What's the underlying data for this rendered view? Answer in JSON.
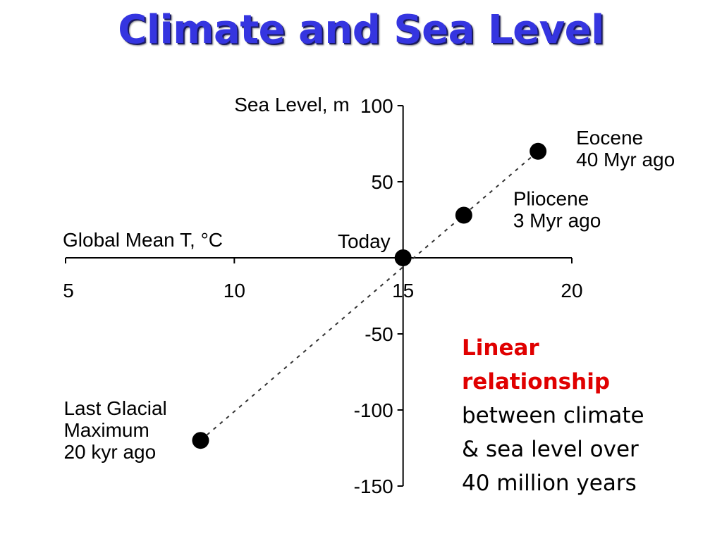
{
  "title": "Climate and Sea Level",
  "chart_data": {
    "type": "scatter",
    "xlabel": "Global Mean T, °C",
    "ylabel": "Sea Level, m",
    "xlim": [
      5,
      20
    ],
    "ylim": [
      -150,
      100
    ],
    "x_ticks": [
      5,
      10,
      15,
      20
    ],
    "y_ticks": [
      100,
      50,
      -50,
      -100,
      -150
    ],
    "points": [
      {
        "x": 9,
        "y": -120,
        "label": [
          "Last Glacial",
          "Maximum",
          "20 kyr ago"
        ]
      },
      {
        "x": 15,
        "y": 0,
        "label": [
          "Today"
        ]
      },
      {
        "x": 16.8,
        "y": 28,
        "label": [
          "Pliocene",
          "3 Myr ago"
        ]
      },
      {
        "x": 19,
        "y": 70,
        "label": [
          "Eocene",
          "40 Myr ago"
        ]
      }
    ],
    "trend_line": {
      "style": "dashed",
      "from": [
        9,
        -120
      ],
      "to": [
        19,
        70
      ]
    }
  },
  "note": {
    "highlight_lines": [
      "Linear",
      "relationship"
    ],
    "text_lines": [
      "between climate",
      "& sea level over",
      "40 million years"
    ]
  }
}
